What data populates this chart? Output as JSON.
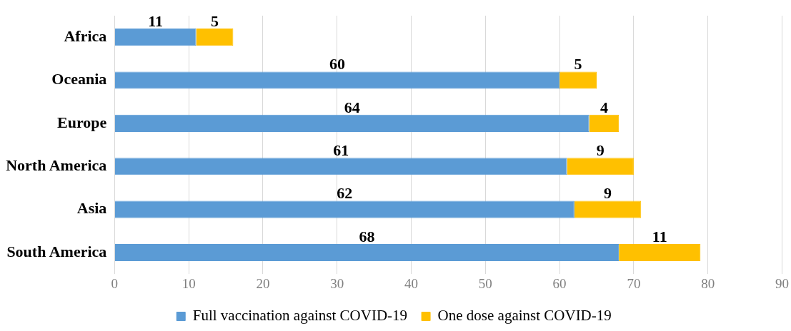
{
  "chart_data": {
    "type": "bar",
    "orientation": "horizontal",
    "stacked": true,
    "categories": [
      "Africa",
      "Oceania",
      "Europe",
      "North America",
      "Asia",
      "South America"
    ],
    "series": [
      {
        "name": "Full vaccination against COVID-19",
        "color": "#5b9bd5",
        "values": [
          11,
          60,
          64,
          61,
          62,
          68
        ]
      },
      {
        "name": "One dose against COVID-19",
        "color": "#ffc000",
        "values": [
          5,
          5,
          4,
          9,
          9,
          11
        ]
      }
    ],
    "xlim": [
      0,
      90
    ],
    "xticks": [
      0,
      10,
      20,
      30,
      40,
      50,
      60,
      70,
      80,
      90
    ],
    "grid": "x",
    "legend": "bottom",
    "data_labels": true
  }
}
